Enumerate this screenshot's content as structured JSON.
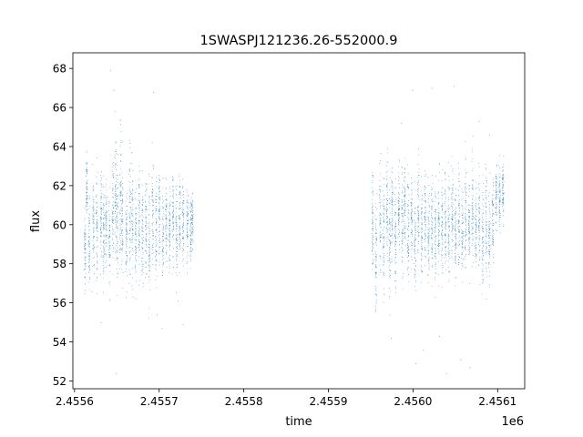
{
  "chart_data": {
    "type": "scatter",
    "title": "1SWASPJ121236.26-552000.9",
    "xlabel": "time",
    "ylabel": "flux",
    "x_offset_label": "1e6",
    "xlim": [
      2455598,
      2456132
    ],
    "ylim": [
      51.6,
      68.8
    ],
    "x_ticks": [
      2455600,
      2455700,
      2455800,
      2455900,
      2456000,
      2456100
    ],
    "x_tick_labels": [
      "2.4556",
      "2.4557",
      "2.4558",
      "2.4559",
      "2.4560",
      "2.4561"
    ],
    "y_ticks": [
      52,
      54,
      56,
      58,
      60,
      62,
      64,
      66,
      68
    ],
    "y_tick_labels": [
      "52",
      "54",
      "56",
      "58",
      "60",
      "62",
      "64",
      "66",
      "68"
    ],
    "grid": false,
    "legend": false,
    "series_color": "#1f77b4",
    "nights": [
      {
        "x": 2455612,
        "y": 58.6,
        "s": 1.1
      },
      {
        "x": 2455614,
        "y": 61.8,
        "s": 0.9
      },
      {
        "x": 2455617,
        "y": 59.3,
        "s": 1.2
      },
      {
        "x": 2455622,
        "y": 60.2,
        "s": 1.3
      },
      {
        "x": 2455626,
        "y": 59.8,
        "s": 1.4
      },
      {
        "x": 2455631,
        "y": 60.6,
        "s": 1.2
      },
      {
        "x": 2455634,
        "y": 59.5,
        "s": 1.3
      },
      {
        "x": 2455637,
        "y": 60.3,
        "s": 1.1
      },
      {
        "x": 2455641,
        "y": 59.2,
        "s": 1.2
      },
      {
        "x": 2455645,
        "y": 60.8,
        "s": 1.3
      },
      {
        "x": 2455648,
        "y": 61.5,
        "s": 1.6
      },
      {
        "x": 2455650,
        "y": 60.2,
        "s": 1.5
      },
      {
        "x": 2455654,
        "y": 61.2,
        "s": 1.8
      },
      {
        "x": 2455656,
        "y": 60.1,
        "s": 1.5
      },
      {
        "x": 2455661,
        "y": 59.4,
        "s": 1.2
      },
      {
        "x": 2455665,
        "y": 60.7,
        "s": 1.6
      },
      {
        "x": 2455668,
        "y": 60.2,
        "s": 1.4
      },
      {
        "x": 2455672,
        "y": 59.3,
        "s": 1.1
      },
      {
        "x": 2455676,
        "y": 60.5,
        "s": 1.3
      },
      {
        "x": 2455680,
        "y": 59.6,
        "s": 1.4
      },
      {
        "x": 2455684,
        "y": 60.1,
        "s": 1.2
      },
      {
        "x": 2455688,
        "y": 59.0,
        "s": 1.3
      },
      {
        "x": 2455692,
        "y": 60.4,
        "s": 1.4
      },
      {
        "x": 2455696,
        "y": 59.5,
        "s": 1.3
      },
      {
        "x": 2455700,
        "y": 60.8,
        "s": 1.3
      },
      {
        "x": 2455704,
        "y": 59.2,
        "s": 1.2
      },
      {
        "x": 2455708,
        "y": 60.3,
        "s": 1.1
      },
      {
        "x": 2455712,
        "y": 59.8,
        "s": 1.0
      },
      {
        "x": 2455716,
        "y": 60.6,
        "s": 1.1
      },
      {
        "x": 2455720,
        "y": 59.6,
        "s": 1.2
      },
      {
        "x": 2455724,
        "y": 60.2,
        "s": 1.0
      },
      {
        "x": 2455728,
        "y": 60.0,
        "s": 1.1
      },
      {
        "x": 2455733,
        "y": 60.1,
        "s": 0.9
      },
      {
        "x": 2455737,
        "y": 59.9,
        "s": 0.8
      },
      {
        "x": 2455739,
        "y": 60.2,
        "s": 0.6
      },
      {
        "x": 2455952,
        "y": 60.2,
        "s": 1.2
      },
      {
        "x": 2455956,
        "y": 58.8,
        "s": 1.4
      },
      {
        "x": 2455961,
        "y": 60.4,
        "s": 1.3
      },
      {
        "x": 2455965,
        "y": 59.2,
        "s": 1.5
      },
      {
        "x": 2455969,
        "y": 60.5,
        "s": 1.3
      },
      {
        "x": 2455972,
        "y": 59.0,
        "s": 1.6
      },
      {
        "x": 2455975,
        "y": 60.8,
        "s": 1.2
      },
      {
        "x": 2455979,
        "y": 59.5,
        "s": 1.4
      },
      {
        "x": 2455983,
        "y": 60.9,
        "s": 1.1
      },
      {
        "x": 2455987,
        "y": 60.1,
        "s": 1.3
      },
      {
        "x": 2455990,
        "y": 61.0,
        "s": 1.0
      },
      {
        "x": 2455994,
        "y": 59.6,
        "s": 1.3
      },
      {
        "x": 2455998,
        "y": 60.2,
        "s": 1.1
      },
      {
        "x": 2456002,
        "y": 59.3,
        "s": 1.2
      },
      {
        "x": 2456006,
        "y": 60.5,
        "s": 1.3
      },
      {
        "x": 2456010,
        "y": 59.7,
        "s": 1.2
      },
      {
        "x": 2456014,
        "y": 60.4,
        "s": 1.1
      },
      {
        "x": 2456018,
        "y": 59.5,
        "s": 1.2
      },
      {
        "x": 2456022,
        "y": 60.0,
        "s": 1.1
      },
      {
        "x": 2456026,
        "y": 59.6,
        "s": 1.3
      },
      {
        "x": 2456030,
        "y": 60.3,
        "s": 1.2
      },
      {
        "x": 2456034,
        "y": 59.4,
        "s": 1.3
      },
      {
        "x": 2456038,
        "y": 60.1,
        "s": 1.2
      },
      {
        "x": 2456042,
        "y": 59.8,
        "s": 1.3
      },
      {
        "x": 2456046,
        "y": 60.6,
        "s": 1.1
      },
      {
        "x": 2456050,
        "y": 59.6,
        "s": 1.2
      },
      {
        "x": 2456054,
        "y": 60.2,
        "s": 1.2
      },
      {
        "x": 2456058,
        "y": 59.4,
        "s": 1.1
      },
      {
        "x": 2456062,
        "y": 60.5,
        "s": 1.3
      },
      {
        "x": 2456066,
        "y": 59.8,
        "s": 1.2
      },
      {
        "x": 2456070,
        "y": 60.8,
        "s": 1.3
      },
      {
        "x": 2456074,
        "y": 59.6,
        "s": 1.1
      },
      {
        "x": 2456078,
        "y": 60.3,
        "s": 1.2
      },
      {
        "x": 2456082,
        "y": 59.4,
        "s": 1.3
      },
      {
        "x": 2456086,
        "y": 60.1,
        "s": 1.4
      },
      {
        "x": 2456090,
        "y": 59.2,
        "s": 1.2
      },
      {
        "x": 2456094,
        "y": 60.5,
        "s": 1.1
      },
      {
        "x": 2456098,
        "y": 61.6,
        "s": 0.9
      },
      {
        "x": 2456102,
        "y": 61.5,
        "s": 0.9
      },
      {
        "x": 2456106,
        "y": 61.8,
        "s": 0.8
      }
    ],
    "outliers": [
      {
        "x": 2455620,
        "y": 56.6
      },
      {
        "x": 2455631,
        "y": 55.0
      },
      {
        "x": 2455642,
        "y": 67.9
      },
      {
        "x": 2455646,
        "y": 66.9
      },
      {
        "x": 2455649,
        "y": 52.4
      },
      {
        "x": 2455667,
        "y": 63.7
      },
      {
        "x": 2455693,
        "y": 66.8
      },
      {
        "x": 2455697,
        "y": 55.4
      },
      {
        "x": 2455703,
        "y": 54.7
      },
      {
        "x": 2455722,
        "y": 56.1
      },
      {
        "x": 2455728,
        "y": 54.9
      },
      {
        "x": 2455974,
        "y": 54.2
      },
      {
        "x": 2455986,
        "y": 65.2
      },
      {
        "x": 2455999,
        "y": 66.9
      },
      {
        "x": 2456003,
        "y": 52.9
      },
      {
        "x": 2456012,
        "y": 53.6
      },
      {
        "x": 2456022,
        "y": 67.0
      },
      {
        "x": 2456031,
        "y": 54.3
      },
      {
        "x": 2456039,
        "y": 52.4
      },
      {
        "x": 2456048,
        "y": 67.1
      },
      {
        "x": 2456056,
        "y": 53.1
      },
      {
        "x": 2456067,
        "y": 52.7
      },
      {
        "x": 2456078,
        "y": 65.3
      },
      {
        "x": 2456090,
        "y": 64.6
      }
    ]
  }
}
